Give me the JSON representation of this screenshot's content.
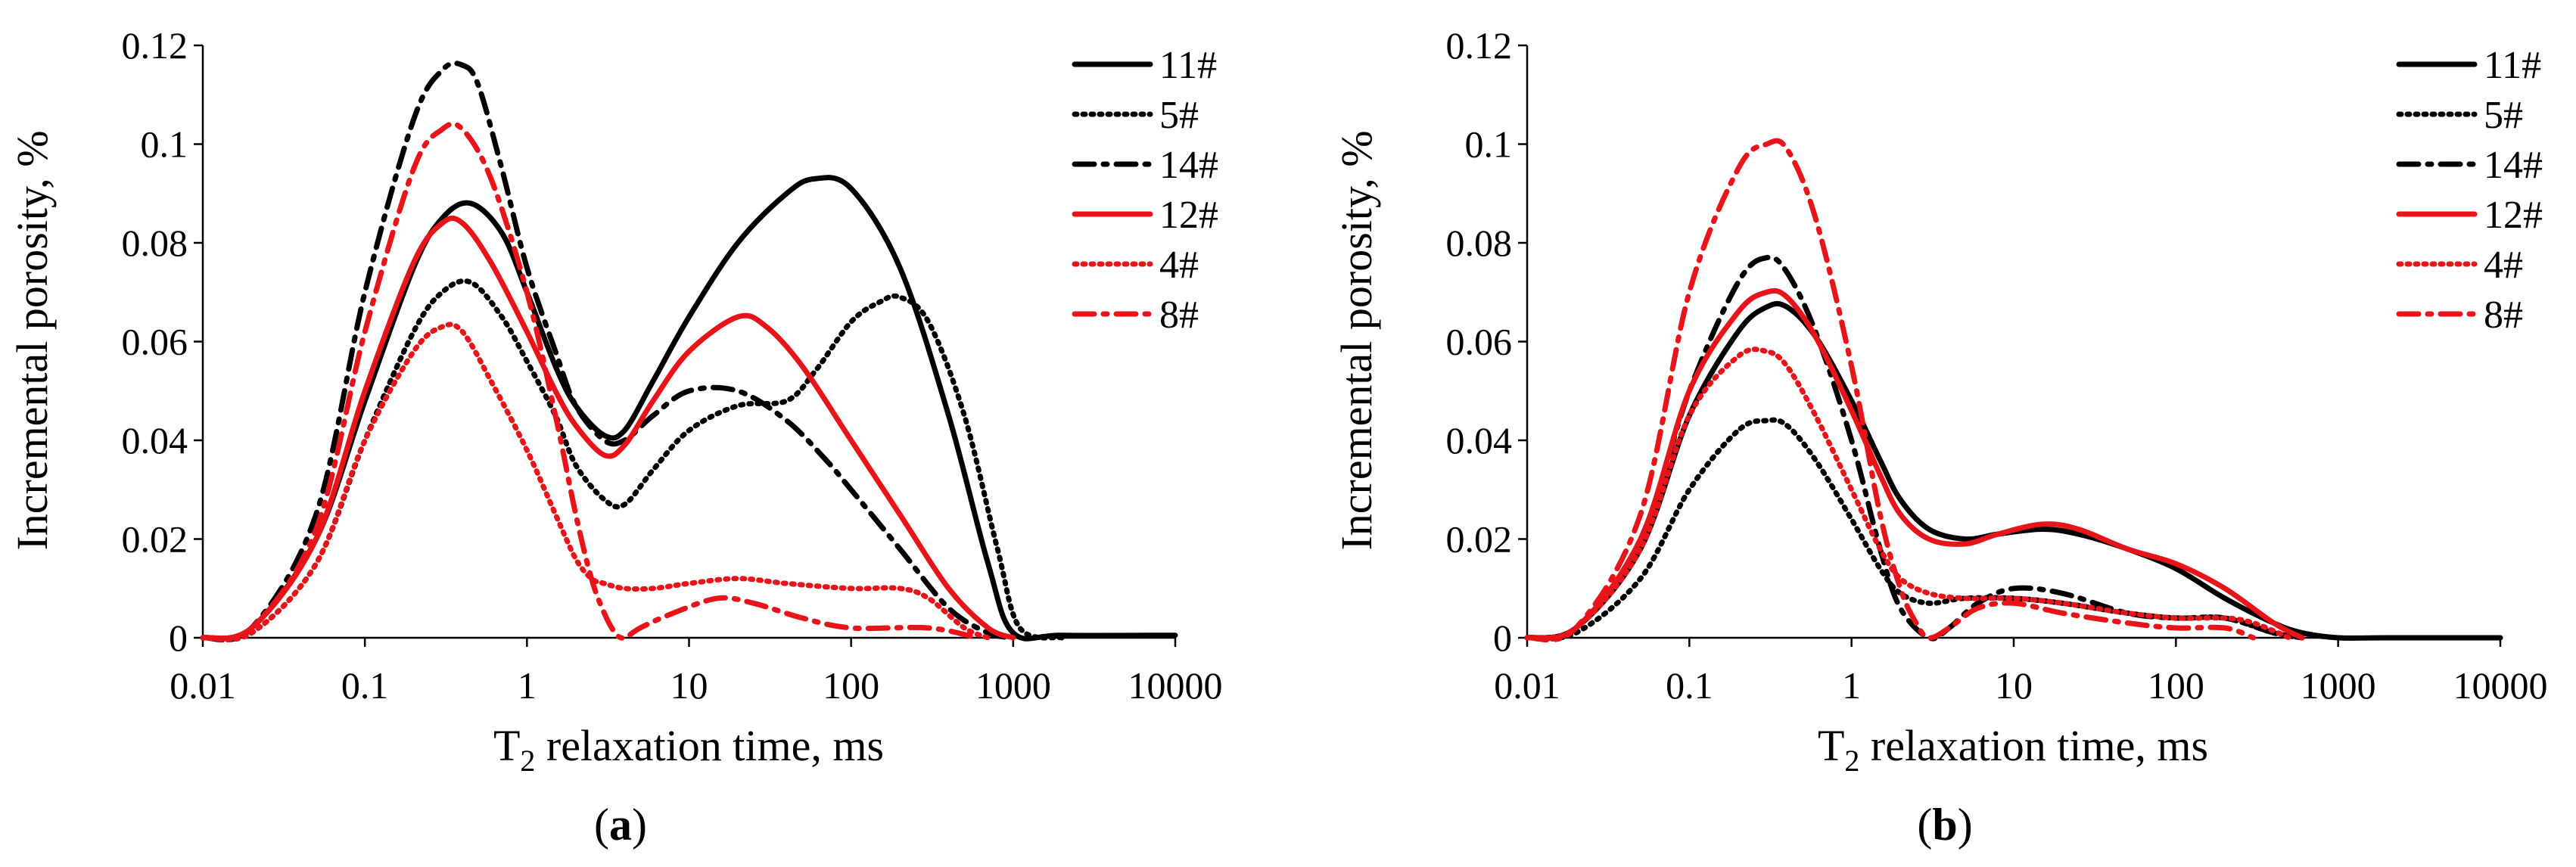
{
  "chart_data": [
    {
      "type": "line",
      "panel_label_prefix": "(",
      "panel_label_letter": "a",
      "panel_label_suffix": ")",
      "xlabel_prefix": "T",
      "xlabel_sub": "2",
      "xlabel_rest": " relaxation time, ms",
      "ylabel": "Incremental porosity, %",
      "xscale": "log",
      "xlim": [
        0.01,
        10000
      ],
      "ylim": [
        0,
        0.12
      ],
      "xticks": [
        "0.01",
        "0.1",
        "1",
        "10",
        "100",
        "1000",
        "10000"
      ],
      "yticks": [
        "0",
        "0.02",
        "0.04",
        "0.06",
        "0.08",
        "0.1",
        "0.12"
      ],
      "legend_position": "top-right",
      "series": [
        {
          "name": "11#",
          "color": "#000000",
          "dash": "solid",
          "x": [
            0.01,
            0.02,
            0.05,
            0.1,
            0.2,
            0.3,
            0.45,
            0.7,
            1,
            1.5,
            2,
            3,
            4,
            6,
            10,
            20,
            40,
            60,
            100,
            200,
            400,
            700,
            1000,
            2000,
            10000
          ],
          "y": [
            0,
            0.002,
            0.02,
            0.048,
            0.075,
            0.085,
            0.088,
            0.082,
            0.07,
            0.055,
            0.047,
            0.041,
            0.042,
            0.052,
            0.065,
            0.08,
            0.09,
            0.093,
            0.091,
            0.075,
            0.045,
            0.015,
            0.001,
            0.0005,
            0.0005
          ]
        },
        {
          "name": "5#",
          "color": "#000000",
          "dash": "dotted",
          "x": [
            0.01,
            0.02,
            0.05,
            0.1,
            0.2,
            0.3,
            0.45,
            0.7,
            1,
            1.5,
            2,
            3,
            4,
            6,
            10,
            20,
            40,
            60,
            100,
            150,
            200,
            300,
            500,
            800,
            1100,
            2000
          ],
          "y": [
            0,
            0.001,
            0.015,
            0.04,
            0.062,
            0.07,
            0.072,
            0.065,
            0.056,
            0.045,
            0.035,
            0.028,
            0.027,
            0.034,
            0.042,
            0.047,
            0.048,
            0.054,
            0.064,
            0.068,
            0.069,
            0.064,
            0.045,
            0.018,
            0.002,
            0
          ]
        },
        {
          "name": "14#",
          "color": "#000000",
          "dash": "dashdot",
          "x": [
            0.01,
            0.02,
            0.05,
            0.1,
            0.2,
            0.3,
            0.4,
            0.5,
            0.7,
            1,
            1.5,
            2,
            3,
            4,
            6,
            10,
            20,
            40,
            70,
            100,
            200,
            400,
            700,
            1000
          ],
          "y": [
            0,
            0.002,
            0.025,
            0.07,
            0.105,
            0.115,
            0.116,
            0.112,
            0.095,
            0.075,
            0.058,
            0.047,
            0.04,
            0.04,
            0.045,
            0.05,
            0.05,
            0.044,
            0.036,
            0.03,
            0.018,
            0.006,
            0.001,
            0
          ]
        },
        {
          "name": "12#",
          "color": "#e8141a",
          "dash": "solid",
          "x": [
            0.01,
            0.02,
            0.05,
            0.1,
            0.2,
            0.3,
            0.4,
            0.6,
            1,
            1.5,
            2,
            3,
            4,
            6,
            10,
            20,
            30,
            50,
            100,
            200,
            400,
            700,
            1000
          ],
          "y": [
            0,
            0.002,
            0.02,
            0.05,
            0.076,
            0.084,
            0.084,
            0.076,
            0.062,
            0.05,
            0.043,
            0.037,
            0.039,
            0.048,
            0.058,
            0.065,
            0.063,
            0.055,
            0.04,
            0.025,
            0.01,
            0.002,
            0
          ]
        },
        {
          "name": "4#",
          "color": "#e8141a",
          "dash": "dotted",
          "x": [
            0.01,
            0.02,
            0.05,
            0.1,
            0.2,
            0.3,
            0.4,
            0.6,
            1,
            1.5,
            2,
            2.5,
            3,
            4,
            6,
            10,
            20,
            40,
            100,
            200,
            300,
            500,
            700
          ],
          "y": [
            0,
            0.001,
            0.015,
            0.04,
            0.058,
            0.063,
            0.062,
            0.052,
            0.038,
            0.025,
            0.016,
            0.012,
            0.011,
            0.01,
            0.01,
            0.011,
            0.012,
            0.011,
            0.01,
            0.01,
            0.008,
            0.002,
            0
          ]
        },
        {
          "name": "8#",
          "color": "#e8141a",
          "dash": "dashdot",
          "x": [
            0.01,
            0.02,
            0.05,
            0.1,
            0.2,
            0.3,
            0.4,
            0.6,
            1,
            1.5,
            2,
            2.5,
            3,
            3.5,
            4,
            5,
            8,
            15,
            25,
            50,
            100,
            300,
            600
          ],
          "y": [
            0,
            0.002,
            0.022,
            0.062,
            0.095,
            0.103,
            0.103,
            0.093,
            0.07,
            0.045,
            0.025,
            0.012,
            0.005,
            0.001,
            0,
            0.002,
            0.005,
            0.008,
            0.007,
            0.004,
            0.002,
            0.002,
            0
          ]
        }
      ]
    },
    {
      "type": "line",
      "panel_label_prefix": "(",
      "panel_label_letter": "b",
      "panel_label_suffix": ")",
      "xlabel_prefix": "T",
      "xlabel_sub": "2",
      "xlabel_rest": " relaxation time, ms",
      "ylabel": "Incremental porosity, %",
      "xscale": "log",
      "xlim": [
        0.01,
        10000
      ],
      "ylim": [
        0,
        0.12
      ],
      "xticks": [
        "0.01",
        "0.1",
        "1",
        "10",
        "100",
        "1000",
        "10000"
      ],
      "yticks": [
        "0",
        "0.02",
        "0.04",
        "0.06",
        "0.08",
        "0.1",
        "0.12"
      ],
      "legend_position": "top-right",
      "series": [
        {
          "name": "11#",
          "color": "#000000",
          "dash": "solid",
          "x": [
            0.01,
            0.02,
            0.05,
            0.1,
            0.2,
            0.3,
            0.4,
            0.6,
            1,
            1.5,
            2,
            3,
            5,
            8,
            15,
            25,
            50,
            100,
            200,
            400,
            600,
            1000,
            2000,
            10000
          ],
          "y": [
            0,
            0.002,
            0.018,
            0.045,
            0.062,
            0.067,
            0.067,
            0.061,
            0.048,
            0.036,
            0.028,
            0.022,
            0.02,
            0.021,
            0.022,
            0.021,
            0.018,
            0.014,
            0.008,
            0.003,
            0.001,
            0,
            0,
            0
          ]
        },
        {
          "name": "5#",
          "color": "#000000",
          "dash": "dotted",
          "x": [
            0.01,
            0.02,
            0.05,
            0.1,
            0.2,
            0.3,
            0.4,
            0.6,
            1,
            1.5,
            2,
            3,
            5,
            10,
            20,
            50,
            100,
            200,
            400,
            600
          ],
          "y": [
            0,
            0.001,
            0.012,
            0.03,
            0.042,
            0.044,
            0.043,
            0.036,
            0.024,
            0.014,
            0.009,
            0.007,
            0.008,
            0.008,
            0.007,
            0.005,
            0.004,
            0.004,
            0.001,
            0
          ]
        },
        {
          "name": "14#",
          "color": "#000000",
          "dash": "dashdot",
          "x": [
            0.01,
            0.02,
            0.05,
            0.1,
            0.2,
            0.3,
            0.4,
            0.6,
            1,
            1.5,
            2,
            3,
            4,
            6,
            10,
            20,
            50,
            100,
            200,
            400,
            600
          ],
          "y": [
            0,
            0.002,
            0.02,
            0.05,
            0.072,
            0.077,
            0.074,
            0.062,
            0.04,
            0.018,
            0.006,
            0,
            0.002,
            0.007,
            0.01,
            0.009,
            0.005,
            0.004,
            0.004,
            0.001,
            0
          ]
        },
        {
          "name": "12#",
          "color": "#e8141a",
          "dash": "solid",
          "x": [
            0.01,
            0.02,
            0.05,
            0.1,
            0.2,
            0.3,
            0.4,
            0.6,
            1,
            1.5,
            2,
            3,
            5,
            8,
            15,
            25,
            50,
            100,
            200,
            400,
            600
          ],
          "y": [
            0,
            0.002,
            0.02,
            0.05,
            0.066,
            0.07,
            0.069,
            0.061,
            0.046,
            0.033,
            0.025,
            0.02,
            0.019,
            0.021,
            0.023,
            0.022,
            0.018,
            0.015,
            0.01,
            0.003,
            0
          ]
        },
        {
          "name": "4#",
          "color": "#e8141a",
          "dash": "dotted",
          "x": [
            0.01,
            0.02,
            0.05,
            0.1,
            0.2,
            0.3,
            0.4,
            0.6,
            1,
            1.5,
            2,
            3,
            5,
            10,
            20,
            50,
            100,
            200,
            300,
            500
          ],
          "y": [
            0,
            0.002,
            0.018,
            0.045,
            0.057,
            0.058,
            0.055,
            0.045,
            0.03,
            0.018,
            0.012,
            0.009,
            0.008,
            0.008,
            0.007,
            0.005,
            0.004,
            0.004,
            0.003,
            0
          ]
        },
        {
          "name": "8#",
          "color": "#e8141a",
          "dash": "dashdot",
          "x": [
            0.01,
            0.02,
            0.05,
            0.1,
            0.2,
            0.3,
            0.4,
            0.6,
            1,
            1.5,
            2,
            2.5,
            3,
            4,
            6,
            10,
            20,
            50,
            100,
            200,
            300
          ],
          "y": [
            0,
            0.002,
            0.025,
            0.07,
            0.095,
            0.1,
            0.099,
            0.085,
            0.055,
            0.025,
            0.01,
            0.003,
            0,
            0.002,
            0.006,
            0.007,
            0.005,
            0.003,
            0.002,
            0.002,
            0
          ]
        }
      ]
    }
  ]
}
